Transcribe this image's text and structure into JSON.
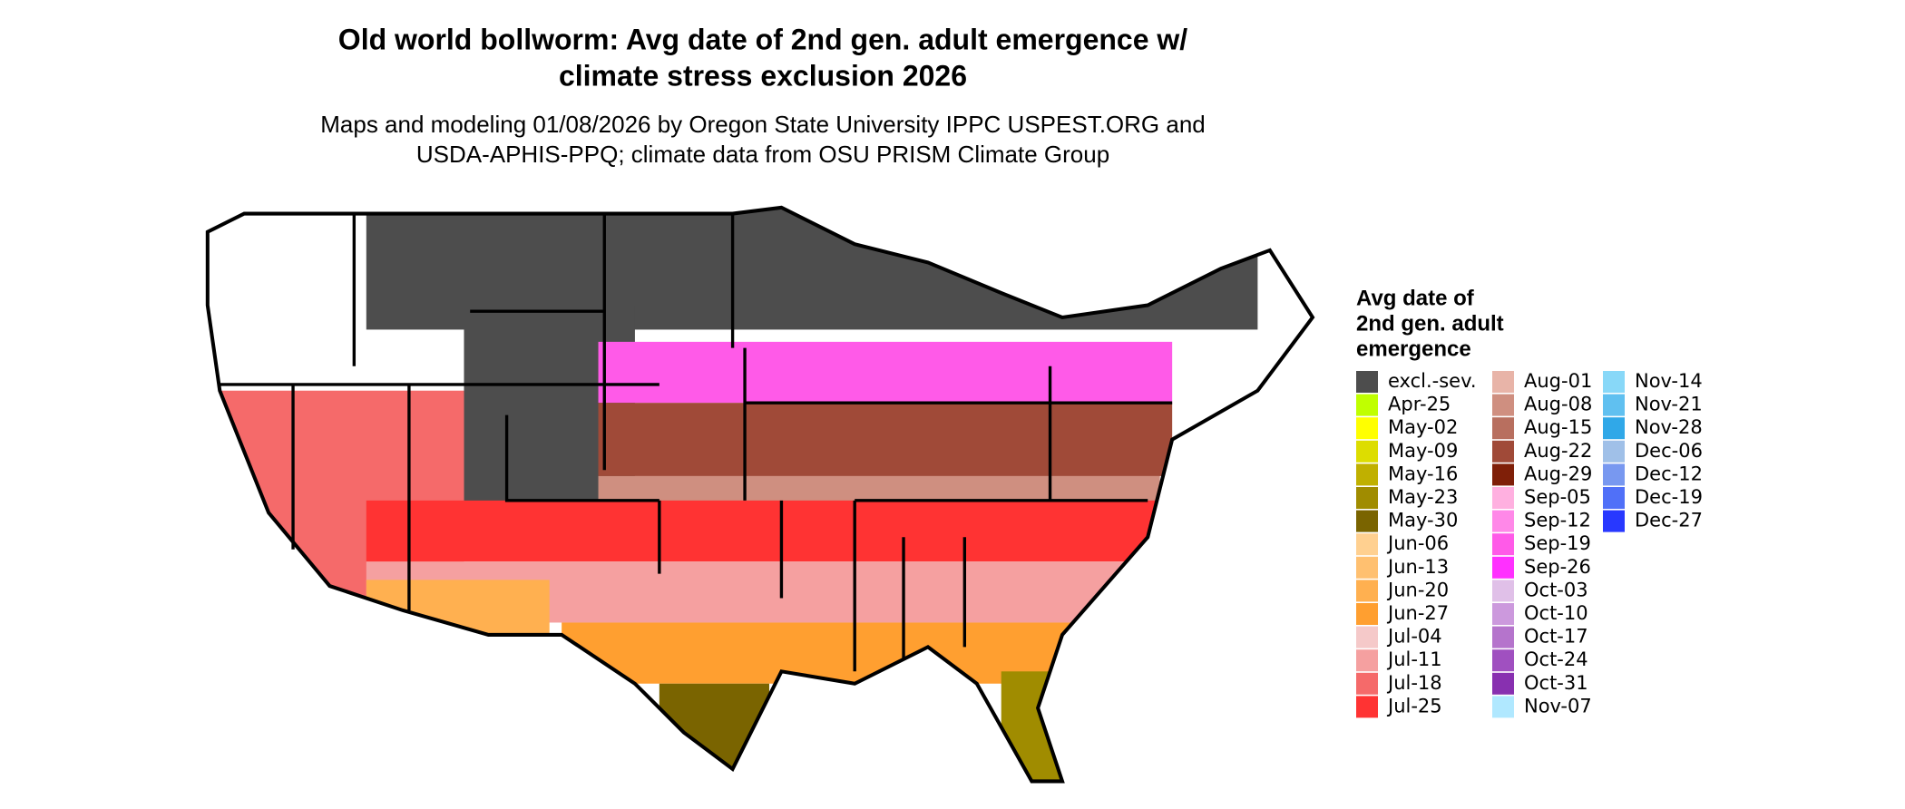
{
  "header": {
    "title": [
      "Old world bollworm: Avg date of 2nd gen. adult emergence w/",
      "climate stress exclusion 2026"
    ],
    "subtitle": [
      "Maps and modeling 01/08/2026 by Oregon State University IPPC USPEST.ORG and",
      "USDA-APHIS-PPQ; climate data from OSU PRISM Climate Group"
    ]
  },
  "legend": {
    "title": [
      "Avg date of",
      "2nd gen. adult",
      "emergence"
    ],
    "items": [
      {
        "label": "excl.-sev.",
        "color": "#4d4d4d"
      },
      {
        "label": "Apr-25",
        "color": "#c0ff00"
      },
      {
        "label": "May-02",
        "color": "#ffff00"
      },
      {
        "label": "May-09",
        "color": "#dddd00"
      },
      {
        "label": "May-16",
        "color": "#c0b000"
      },
      {
        "label": "May-23",
        "color": "#a08c00"
      },
      {
        "label": "May-30",
        "color": "#7a6400"
      },
      {
        "label": "Jun-06",
        "color": "#ffd090"
      },
      {
        "label": "Jun-13",
        "color": "#ffc070"
      },
      {
        "label": "Jun-20",
        "color": "#ffb050"
      },
      {
        "label": "Jun-27",
        "color": "#ff9f30"
      },
      {
        "label": "Jul-04",
        "color": "#f5c9c9"
      },
      {
        "label": "Jul-11",
        "color": "#f5a0a0"
      },
      {
        "label": "Jul-18",
        "color": "#f56a6a"
      },
      {
        "label": "Jul-25",
        "color": "#ff3333"
      },
      {
        "label": "Aug-01",
        "color": "#e8b4a8"
      },
      {
        "label": "Aug-08",
        "color": "#cf8f80"
      },
      {
        "label": "Aug-15",
        "color": "#b86f5f"
      },
      {
        "label": "Aug-22",
        "color": "#a04a38"
      },
      {
        "label": "Aug-29",
        "color": "#7f1f08"
      },
      {
        "label": "Sep-05",
        "color": "#ffb0e0"
      },
      {
        "label": "Sep-12",
        "color": "#ff88e8"
      },
      {
        "label": "Sep-19",
        "color": "#ff5ae8"
      },
      {
        "label": "Sep-26",
        "color": "#ff30ff"
      },
      {
        "label": "Oct-03",
        "color": "#e0c0e8"
      },
      {
        "label": "Oct-10",
        "color": "#cc99dd"
      },
      {
        "label": "Oct-17",
        "color": "#b574cc"
      },
      {
        "label": "Oct-24",
        "color": "#a050c0"
      },
      {
        "label": "Oct-31",
        "color": "#8830b0"
      },
      {
        "label": "Nov-07",
        "color": "#b0e8ff"
      },
      {
        "label": "Nov-14",
        "color": "#88d8f8"
      },
      {
        "label": "Nov-21",
        "color": "#60c0f0"
      },
      {
        "label": "Nov-28",
        "color": "#30a8e8"
      },
      {
        "label": "Dec-06",
        "color": "#a0c0e8"
      },
      {
        "label": "Dec-12",
        "color": "#7898f0"
      },
      {
        "label": "Dec-19",
        "color": "#5070f8"
      },
      {
        "label": "Dec-27",
        "color": "#2838ff"
      }
    ]
  }
}
